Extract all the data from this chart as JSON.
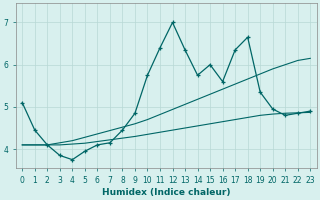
{
  "title": "",
  "xlabel": "Humidex (Indice chaleur)",
  "x": [
    0,
    1,
    2,
    3,
    4,
    5,
    6,
    7,
    8,
    9,
    10,
    11,
    12,
    13,
    14,
    15,
    16,
    17,
    18,
    19,
    20,
    21,
    22,
    23
  ],
  "y_main": [
    5.1,
    4.45,
    4.1,
    3.85,
    3.75,
    3.95,
    4.1,
    4.15,
    4.45,
    4.85,
    5.75,
    6.4,
    7.0,
    6.35,
    5.75,
    6.0,
    5.6,
    6.35,
    6.65,
    5.35,
    4.95,
    4.8,
    4.85,
    4.9
  ],
  "y_upper": [
    4.1,
    4.1,
    4.1,
    4.15,
    4.2,
    4.28,
    4.36,
    4.44,
    4.52,
    4.6,
    4.7,
    4.82,
    4.94,
    5.06,
    5.18,
    5.3,
    5.42,
    5.54,
    5.66,
    5.78,
    5.9,
    6.0,
    6.1,
    6.15
  ],
  "y_lower": [
    4.1,
    4.1,
    4.1,
    4.1,
    4.12,
    4.14,
    4.18,
    4.22,
    4.26,
    4.3,
    4.35,
    4.4,
    4.45,
    4.5,
    4.55,
    4.6,
    4.65,
    4.7,
    4.75,
    4.8,
    4.83,
    4.85,
    4.86,
    4.87
  ],
  "ylim": [
    3.55,
    7.45
  ],
  "xlim": [
    -0.5,
    23.5
  ],
  "yticks": [
    4,
    5,
    6,
    7
  ],
  "xticks": [
    0,
    1,
    2,
    3,
    4,
    5,
    6,
    7,
    8,
    9,
    10,
    11,
    12,
    13,
    14,
    15,
    16,
    17,
    18,
    19,
    20,
    21,
    22,
    23
  ],
  "line_color": "#006666",
  "bg_color": "#d8f0ee",
  "grid_color": "#b8d8d5",
  "font_color": "#006666",
  "spine_color": "#888888"
}
